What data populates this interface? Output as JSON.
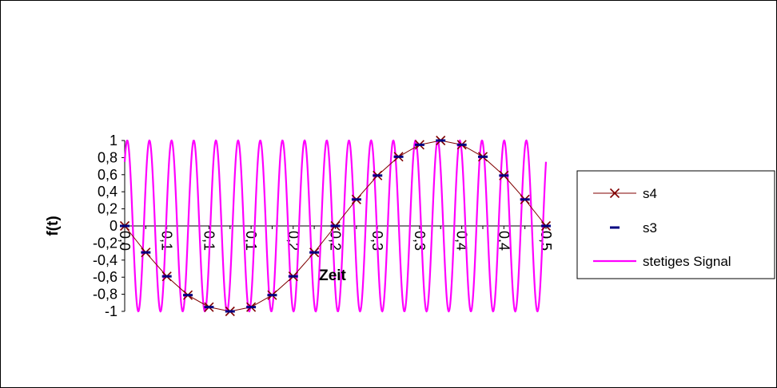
{
  "chart_data": {
    "type": "line",
    "xlabel": "Zeit",
    "ylabel": "f(t)",
    "ylim": [
      -1,
      1
    ],
    "y_ticks": [
      "1",
      "0,8",
      "0,6",
      "0,4",
      "0,2",
      "0",
      "-0,2",
      "-0,4",
      "-0,6",
      "-0,8",
      "-1"
    ],
    "x_tick_labels": [
      "0,0",
      "0,1",
      "0,1",
      "0,1",
      "0,2",
      "0,2",
      "0,3",
      "0,3",
      "0,4",
      "0,4",
      "0,5",
      "0,5"
    ],
    "legend_position": "right",
    "series": [
      {
        "name": "s4",
        "color": "#800000",
        "marker": "x",
        "x": [
          0,
          0.0263,
          0.0526,
          0.0789,
          0.1053,
          0.1316,
          0.1579,
          0.1842,
          0.2105,
          0.2368,
          0.2632,
          0.2895,
          0.3158,
          0.3421,
          0.3684,
          0.3947,
          0.4211,
          0.4474,
          0.4737,
          0.5,
          0.5263
        ],
        "values": [
          0,
          -0.31,
          -0.59,
          -0.81,
          -0.95,
          -1.0,
          -0.95,
          -0.81,
          -0.59,
          -0.31,
          0,
          0.31,
          0.59,
          0.81,
          0.95,
          1.0,
          0.95,
          0.81,
          0.59,
          0.31,
          0
        ]
      },
      {
        "name": "s3",
        "color": "#000080",
        "marker": "dash",
        "x": [
          0,
          0.0263,
          0.0526,
          0.0789,
          0.1053,
          0.1316,
          0.1579,
          0.1842,
          0.2105,
          0.2368,
          0.2632,
          0.2895,
          0.3158,
          0.3421,
          0.3684,
          0.3947,
          0.4211,
          0.4474,
          0.4737,
          0.5,
          0.5263
        ],
        "values": [
          0,
          -0.31,
          -0.59,
          -0.81,
          -0.95,
          -1.0,
          -0.95,
          -0.81,
          -0.59,
          -0.31,
          0,
          0.31,
          0.59,
          0.81,
          0.95,
          1.0,
          0.95,
          0.81,
          0.59,
          0.31,
          0
        ]
      },
      {
        "name": "stetiges Signal",
        "color": "#ff00ff",
        "marker": "none",
        "cycles": 19,
        "x_range": [
          0,
          0.5263
        ],
        "amplitude": 1
      }
    ]
  }
}
